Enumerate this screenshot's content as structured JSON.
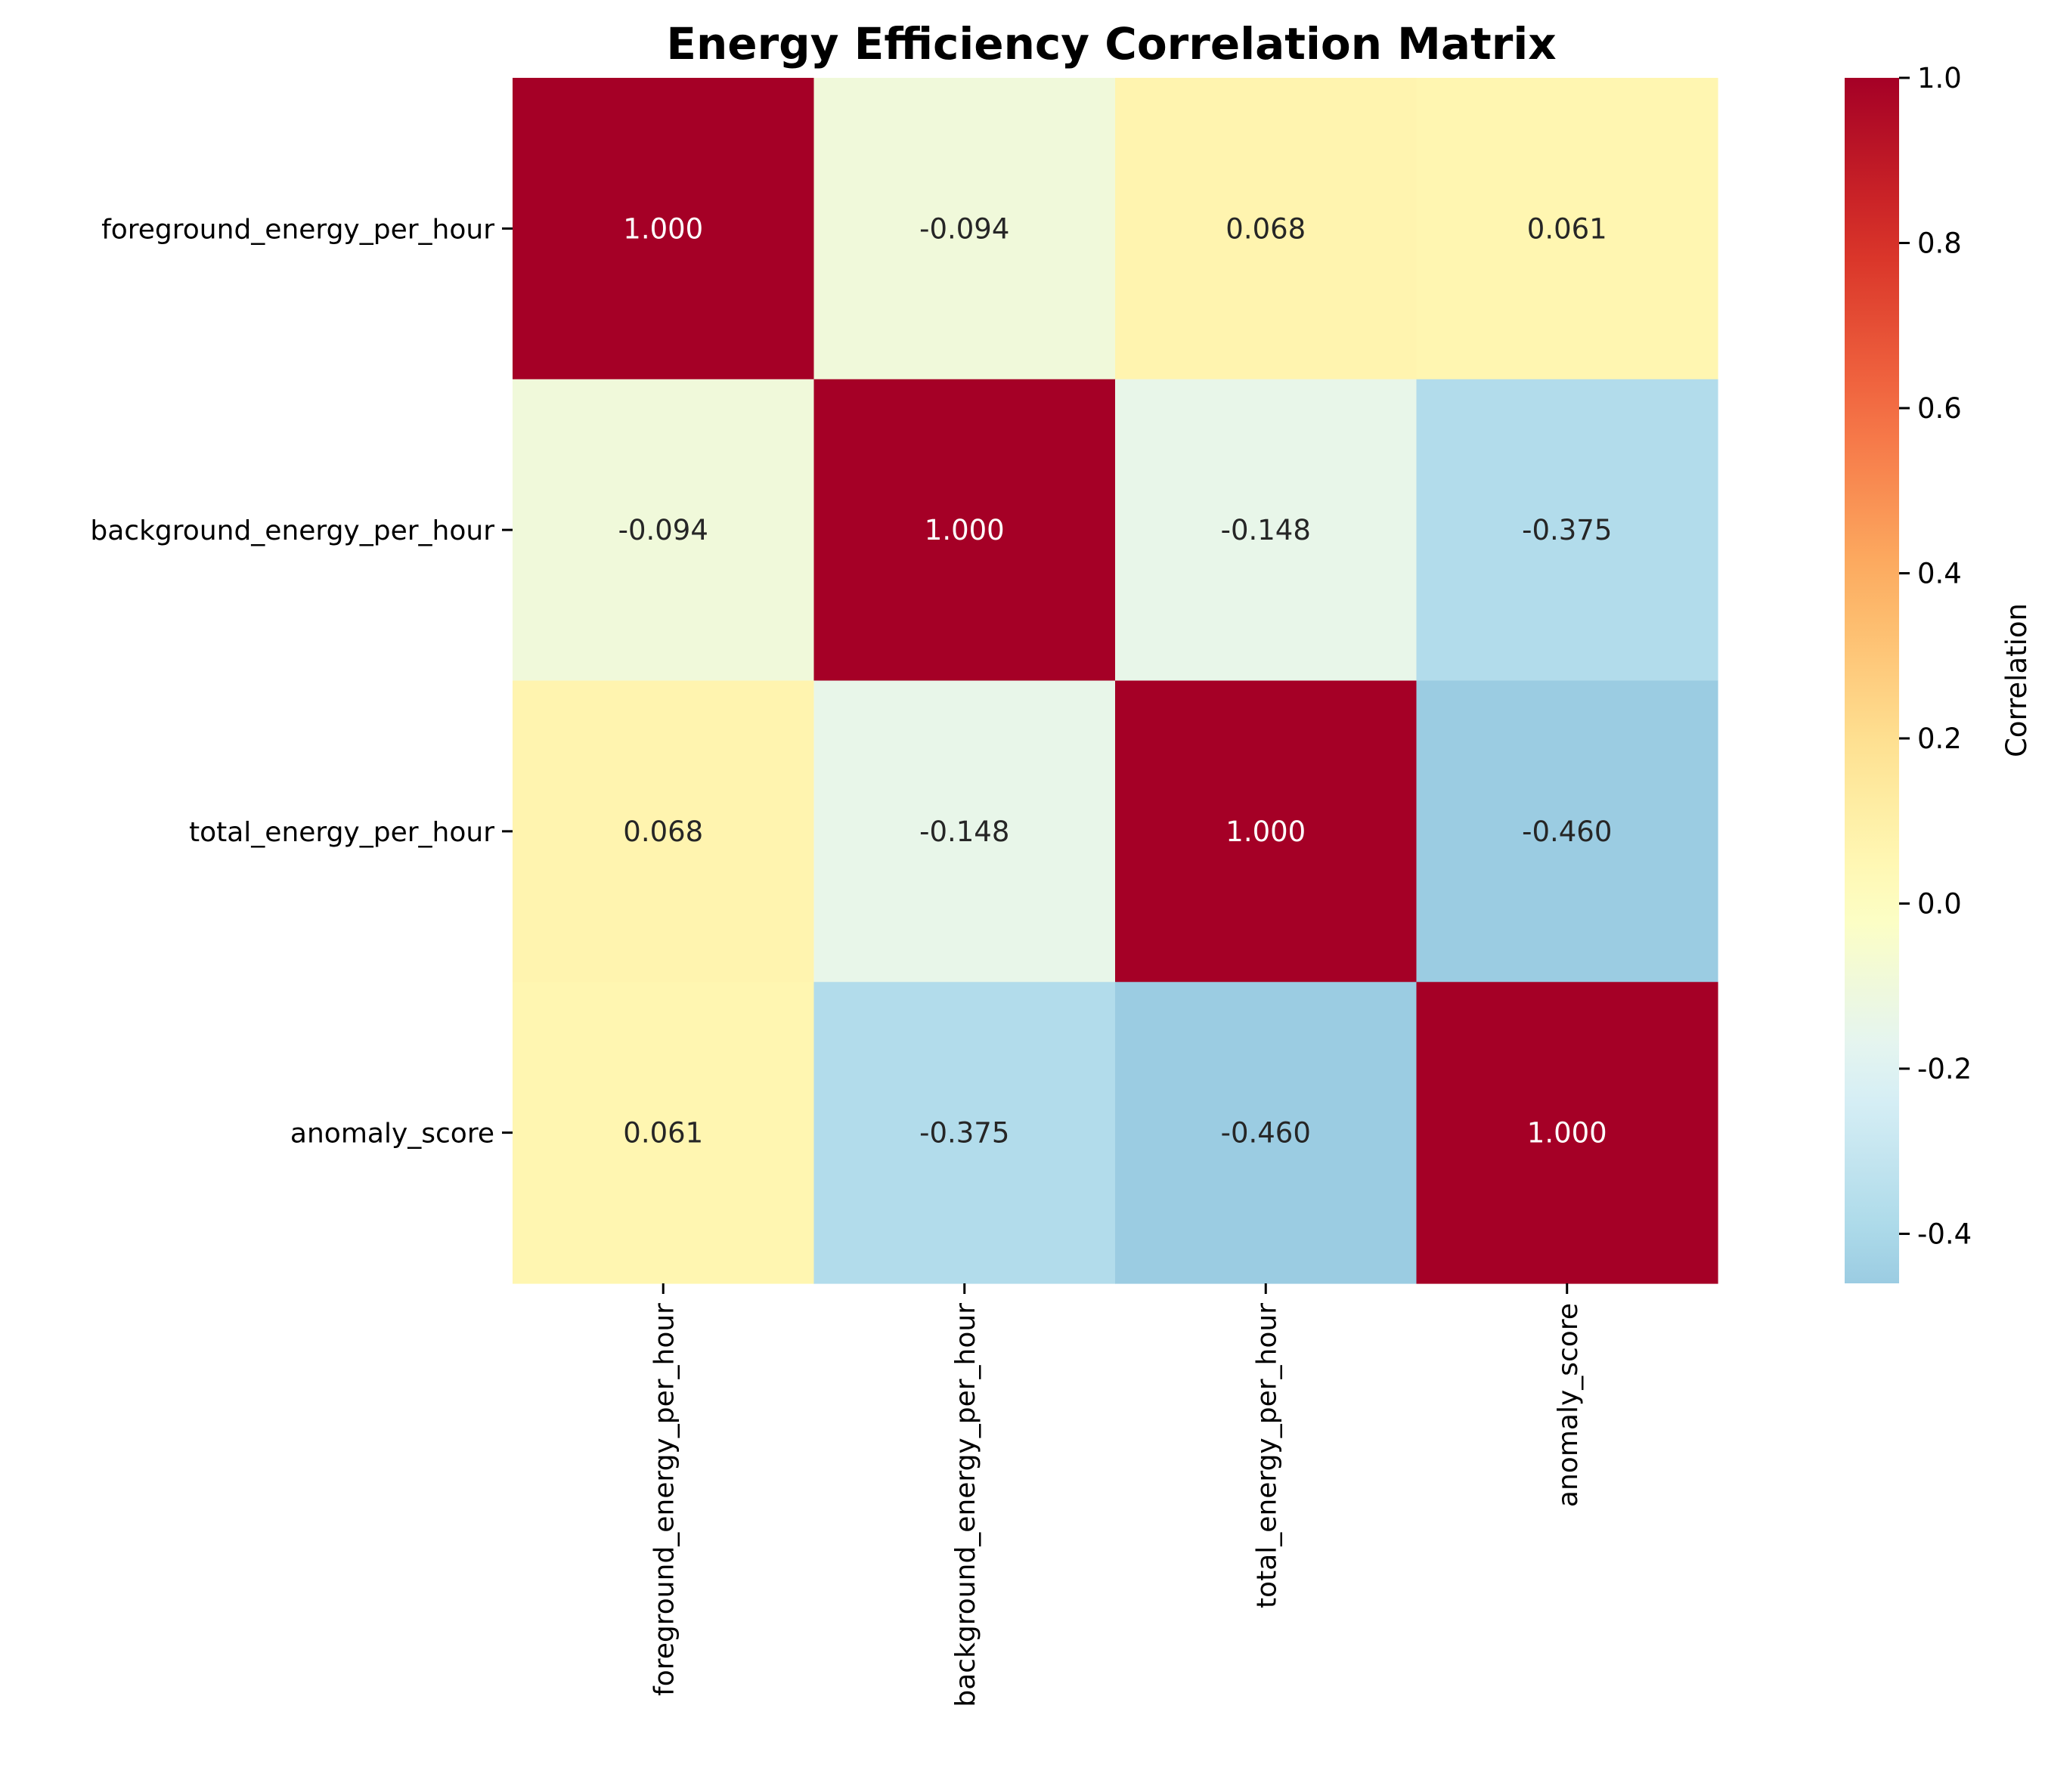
{
  "chart_data": {
    "type": "heatmap",
    "title": "Energy Efficiency Correlation Matrix",
    "row_labels": [
      "foreground_energy_per_hour",
      "background_energy_per_hour",
      "total_energy_per_hour",
      "anomaly_score"
    ],
    "col_labels": [
      "foreground_energy_per_hour",
      "background_energy_per_hour",
      "total_energy_per_hour",
      "anomaly_score"
    ],
    "values": [
      [
        1.0,
        -0.094,
        0.068,
        0.061
      ],
      [
        -0.094,
        1.0,
        -0.148,
        -0.375
      ],
      [
        0.068,
        -0.148,
        1.0,
        -0.46
      ],
      [
        0.061,
        -0.375,
        -0.46,
        1.0
      ]
    ],
    "cell_labels": [
      [
        "1.000",
        "-0.094",
        "0.068",
        "0.061"
      ],
      [
        "-0.094",
        "1.000",
        "-0.148",
        "-0.375"
      ],
      [
        "0.068",
        "-0.148",
        "1.000",
        "-0.460"
      ],
      [
        "0.061",
        "-0.375",
        "-0.460",
        "1.000"
      ]
    ],
    "colormap": "RdYlBu_r",
    "center": 0.0,
    "vmin": -0.46,
    "vmax": 1.0,
    "colorbar": {
      "label": "Correlation",
      "ticks": [
        1.0,
        0.8,
        0.6,
        0.4,
        0.2,
        0.0,
        -0.2,
        -0.4
      ],
      "tick_labels": [
        "1.0",
        "0.8",
        "0.6",
        "0.4",
        "0.2",
        "0.0",
        "-0.2",
        "-0.4"
      ]
    }
  }
}
